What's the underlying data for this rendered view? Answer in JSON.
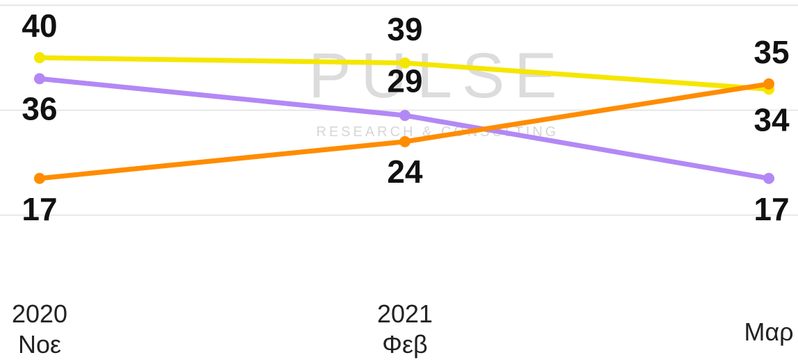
{
  "chart_data": {
    "type": "line",
    "watermark": {
      "brand": "PULSE",
      "tagline": "RESEARCH & CONSULTING"
    },
    "categories": [
      "2020\nΝοε",
      "2021\nΦεβ",
      "Μαρ"
    ],
    "series": [
      {
        "name": null,
        "color": "#f5e600",
        "values": [
          40,
          39,
          34
        ]
      },
      {
        "name": null,
        "color": "#b388f5",
        "values": [
          36,
          29,
          17
        ]
      },
      {
        "name": null,
        "color": "#ff8c00",
        "values": [
          17,
          24,
          35
        ]
      }
    ],
    "ylim": [
      -18,
      51
    ],
    "yticks": [
      10,
      30,
      50
    ],
    "grid": true
  }
}
